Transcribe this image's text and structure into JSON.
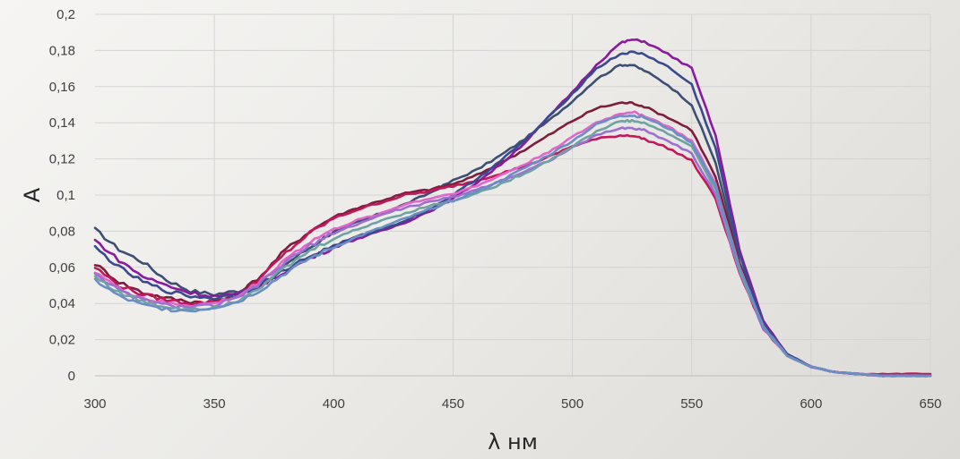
{
  "chart_data": {
    "type": "line",
    "xlabel": "λ нм",
    "ylabel": "A",
    "xlim": [
      300,
      650
    ],
    "ylim": [
      0,
      0.2
    ],
    "x_ticks": [
      "300",
      "350",
      "400",
      "450",
      "500",
      "550",
      "600",
      "650"
    ],
    "y_ticks": [
      "0",
      "0,02",
      "0,04",
      "0,06",
      "0,08",
      "0,1",
      "0,12",
      "0,14",
      "0,16",
      "0,18",
      "0,2"
    ],
    "grid": true,
    "legend": "none",
    "x": [
      300,
      310,
      320,
      330,
      340,
      350,
      360,
      370,
      380,
      390,
      400,
      410,
      420,
      430,
      440,
      450,
      460,
      470,
      480,
      490,
      500,
      510,
      520,
      525,
      530,
      540,
      550,
      560,
      570,
      580,
      590,
      600,
      610,
      620,
      630,
      640,
      650
    ],
    "series": [
      {
        "color": "#3d4f73",
        "values": [
          0.081,
          0.07,
          0.063,
          0.053,
          0.047,
          0.045,
          0.047,
          0.053,
          0.062,
          0.071,
          0.08,
          0.085,
          0.09,
          0.095,
          0.101,
          0.108,
          0.114,
          0.122,
          0.131,
          0.141,
          0.152,
          0.164,
          0.172,
          0.172,
          0.169,
          0.161,
          0.15,
          0.118,
          0.063,
          0.028,
          0.012,
          0.005,
          0.002,
          0.001,
          0.0,
          0.0,
          0.0
        ]
      },
      {
        "color": "#7f1d3d",
        "values": [
          0.062,
          0.052,
          0.046,
          0.043,
          0.041,
          0.041,
          0.045,
          0.056,
          0.07,
          0.08,
          0.088,
          0.093,
          0.097,
          0.101,
          0.103,
          0.106,
          0.111,
          0.118,
          0.125,
          0.133,
          0.141,
          0.148,
          0.151,
          0.151,
          0.149,
          0.143,
          0.136,
          0.11,
          0.062,
          0.028,
          0.012,
          0.005,
          0.002,
          0.001,
          0.0,
          0.0,
          0.0
        ]
      },
      {
        "color": "#c2185b",
        "values": [
          0.06,
          0.05,
          0.045,
          0.042,
          0.04,
          0.041,
          0.044,
          0.055,
          0.068,
          0.079,
          0.087,
          0.092,
          0.096,
          0.1,
          0.102,
          0.105,
          0.108,
          0.112,
          0.116,
          0.121,
          0.127,
          0.131,
          0.133,
          0.133,
          0.131,
          0.126,
          0.119,
          0.098,
          0.057,
          0.026,
          0.011,
          0.005,
          0.002,
          0.001,
          0.001,
          0.001,
          0.001
        ]
      },
      {
        "color": "#8b1a9e",
        "values": [
          0.075,
          0.064,
          0.055,
          0.05,
          0.046,
          0.044,
          0.045,
          0.05,
          0.058,
          0.065,
          0.071,
          0.076,
          0.08,
          0.085,
          0.091,
          0.098,
          0.107,
          0.117,
          0.129,
          0.143,
          0.157,
          0.172,
          0.184,
          0.186,
          0.185,
          0.178,
          0.17,
          0.133,
          0.07,
          0.03,
          0.012,
          0.005,
          0.002,
          0.001,
          0.0,
          0.0,
          0.0
        ]
      },
      {
        "color": "#3b4a8c",
        "values": [
          0.071,
          0.06,
          0.052,
          0.047,
          0.044,
          0.043,
          0.045,
          0.051,
          0.059,
          0.066,
          0.072,
          0.077,
          0.081,
          0.086,
          0.092,
          0.1,
          0.109,
          0.119,
          0.13,
          0.143,
          0.156,
          0.17,
          0.178,
          0.179,
          0.178,
          0.171,
          0.161,
          0.126,
          0.067,
          0.029,
          0.012,
          0.005,
          0.002,
          0.001,
          0.0,
          0.0,
          0.0
        ]
      },
      {
        "color": "#e066c8",
        "values": [
          0.058,
          0.048,
          0.043,
          0.04,
          0.039,
          0.04,
          0.044,
          0.053,
          0.065,
          0.074,
          0.081,
          0.086,
          0.09,
          0.095,
          0.098,
          0.101,
          0.105,
          0.111,
          0.117,
          0.124,
          0.132,
          0.14,
          0.145,
          0.146,
          0.144,
          0.138,
          0.13,
          0.106,
          0.06,
          0.027,
          0.011,
          0.005,
          0.002,
          0.001,
          0.0,
          0.0,
          0.0
        ]
      },
      {
        "color": "#9c6fd0",
        "values": [
          0.057,
          0.047,
          0.042,
          0.039,
          0.038,
          0.039,
          0.043,
          0.052,
          0.063,
          0.072,
          0.079,
          0.084,
          0.089,
          0.093,
          0.096,
          0.099,
          0.103,
          0.108,
          0.113,
          0.119,
          0.126,
          0.133,
          0.137,
          0.137,
          0.136,
          0.13,
          0.123,
          0.1,
          0.058,
          0.026,
          0.011,
          0.005,
          0.002,
          0.001,
          0.0,
          0.0,
          0.0
        ]
      },
      {
        "color": "#6fa3a3",
        "values": [
          0.055,
          0.046,
          0.041,
          0.038,
          0.037,
          0.038,
          0.042,
          0.05,
          0.06,
          0.069,
          0.076,
          0.081,
          0.086,
          0.09,
          0.094,
          0.097,
          0.101,
          0.106,
          0.112,
          0.119,
          0.127,
          0.135,
          0.141,
          0.141,
          0.14,
          0.134,
          0.127,
          0.103,
          0.059,
          0.027,
          0.011,
          0.005,
          0.002,
          0.001,
          0.0,
          0.0,
          0.0
        ]
      },
      {
        "color": "#6b8ec4",
        "values": [
          0.053,
          0.044,
          0.039,
          0.037,
          0.036,
          0.038,
          0.041,
          0.048,
          0.057,
          0.065,
          0.071,
          0.077,
          0.082,
          0.087,
          0.092,
          0.097,
          0.102,
          0.108,
          0.115,
          0.122,
          0.13,
          0.139,
          0.144,
          0.144,
          0.143,
          0.137,
          0.129,
          0.105,
          0.06,
          0.027,
          0.011,
          0.005,
          0.002,
          0.001,
          0.0,
          0.0,
          0.0
        ]
      }
    ]
  }
}
